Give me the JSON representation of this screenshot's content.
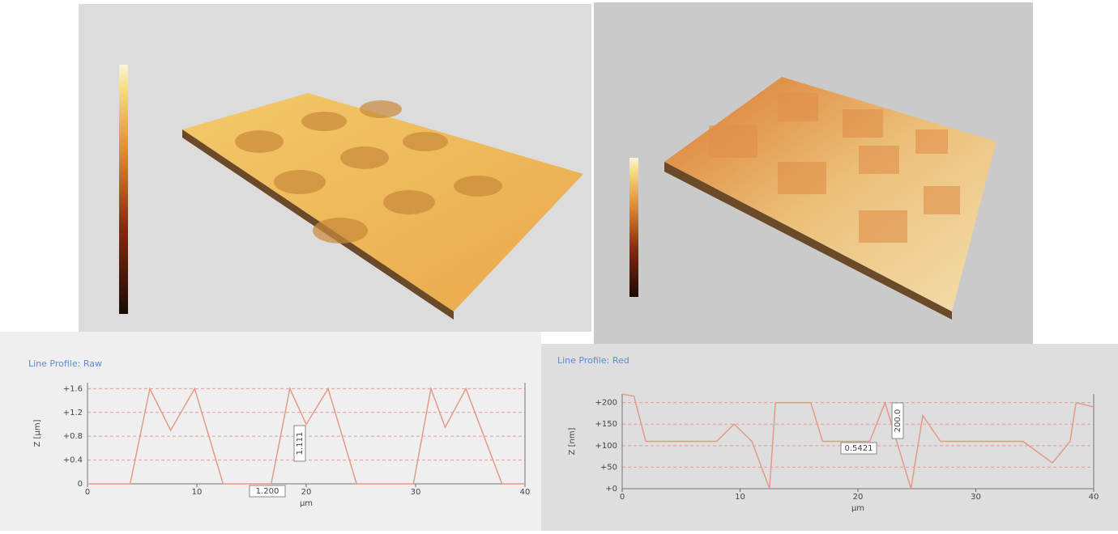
{
  "chart_data": [
    {
      "type": "line",
      "title": "Line Profile: Raw",
      "x_label": "µm",
      "y_label": "Z [µm]",
      "x": [
        0,
        3.9,
        5.7,
        7.6,
        9.8,
        12.4,
        16.8,
        18.5,
        20,
        22,
        24.6,
        29.8,
        31.4,
        32.7,
        34.6,
        37.9,
        40
      ],
      "values": [
        0,
        0,
        1.6,
        0.9,
        1.6,
        0,
        0,
        1.6,
        1.0,
        1.6,
        0,
        0,
        1.6,
        0.95,
        1.6,
        0,
        0
      ],
      "color": "#e39a86",
      "xlim": [
        0,
        40
      ],
      "ylim": [
        0,
        1.7
      ],
      "xticks": [
        0,
        10,
        20,
        30,
        40
      ],
      "yticks": [
        {
          "value": 0,
          "label": "0"
        },
        {
          "value": 0.4,
          "label": "+0.4"
        },
        {
          "value": 0.8,
          "label": "+0.8"
        },
        {
          "value": 1.2,
          "label": "+1.2"
        },
        {
          "value": 1.6,
          "label": "+1.6"
        }
      ],
      "grid": true,
      "annotations": [
        "1.200",
        "1.111"
      ]
    },
    {
      "type": "line",
      "title": "Line Profile: Red",
      "x_label": "µm",
      "y_label": "Z [nm]",
      "x": [
        0,
        1,
        2,
        8,
        9.5,
        11,
        12.5,
        13,
        16,
        17,
        21,
        22.3,
        24.5,
        25.5,
        27,
        34,
        36.5,
        38,
        38.5,
        40
      ],
      "values": [
        220,
        215,
        110,
        110,
        150,
        110,
        0,
        200,
        200,
        110,
        110,
        200,
        0,
        170,
        110,
        110,
        60,
        110,
        200,
        190
      ],
      "color": "#e39a86",
      "xlim": [
        0,
        40
      ],
      "ylim": [
        0,
        220
      ],
      "xticks": [
        0,
        10,
        20,
        30,
        40
      ],
      "yticks": [
        {
          "value": 0,
          "label": "+0"
        },
        {
          "value": 50,
          "label": "+50"
        },
        {
          "value": 100,
          "label": "+100"
        },
        {
          "value": 150,
          "label": "+150"
        },
        {
          "value": 200,
          "label": "+200"
        }
      ],
      "grid": true,
      "annotations": [
        "0.5421",
        "200.0"
      ]
    }
  ]
}
